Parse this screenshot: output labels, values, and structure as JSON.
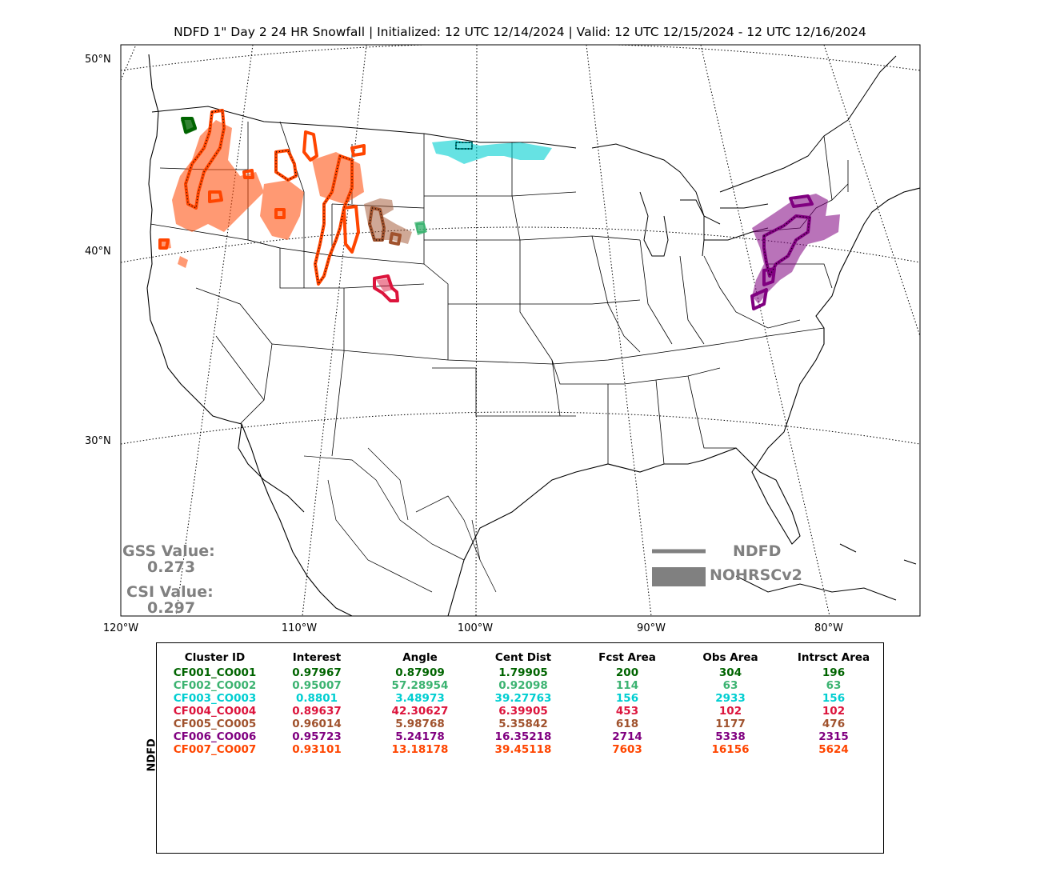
{
  "title": "NDFD 1\" Day 2 24 HR Snowfall | Initialized: 12 UTC 12/14/2024 | Valid: 12 UTC 12/15/2024 - 12 UTC 12/16/2024",
  "lat_labels": [
    "50°N",
    "40°N",
    "30°N"
  ],
  "lon_labels": [
    "120°W",
    "110°W",
    "100°W",
    "90°W",
    "80°W"
  ],
  "gss": {
    "label": "GSS Value:",
    "value": "0.273"
  },
  "csi": {
    "label": "CSI Value:",
    "value": "0.297"
  },
  "legend": {
    "line_label": "NDFD",
    "fill_label": "NOHRSCv2",
    "color": "#808080"
  },
  "table": {
    "ylabel": "NDFD",
    "headers": [
      "Cluster ID",
      "Interest",
      "Angle",
      "Cent Dist",
      "Fcst Area",
      "Obs Area",
      "Intrsct Area"
    ],
    "rows": [
      {
        "color": "#006400",
        "cells": [
          "CF001_CO001",
          "0.97967",
          "0.87909",
          "1.79905",
          "200",
          "304",
          "196"
        ]
      },
      {
        "color": "#3cb371",
        "cells": [
          "CF002_CO002",
          "0.95007",
          "57.28954",
          "0.92098",
          "114",
          "63",
          "63"
        ]
      },
      {
        "color": "#00ced1",
        "cells": [
          "CF003_CO003",
          "0.8801",
          "3.48973",
          "39.27763",
          "156",
          "2933",
          "156"
        ]
      },
      {
        "color": "#dc143c",
        "cells": [
          "CF004_CO004",
          "0.89637",
          "42.30627",
          "6.39905",
          "453",
          "102",
          "102"
        ]
      },
      {
        "color": "#a0522d",
        "cells": [
          "CF005_CO005",
          "0.96014",
          "5.98768",
          "5.35842",
          "618",
          "1177",
          "476"
        ]
      },
      {
        "color": "#800080",
        "cells": [
          "CF006_CO006",
          "0.95723",
          "5.24178",
          "16.35218",
          "2714",
          "5338",
          "2315"
        ]
      },
      {
        "color": "#ff4500",
        "cells": [
          "CF007_CO007",
          "0.93101",
          "13.18178",
          "39.45118",
          "7603",
          "16156",
          "5624"
        ]
      }
    ]
  },
  "clusters": [
    {
      "id": "CF001_CO001",
      "color": "#006400"
    },
    {
      "id": "CF002_CO002",
      "color": "#3cb371"
    },
    {
      "id": "CF003_CO003",
      "color": "#00ced1"
    },
    {
      "id": "CF004_CO004",
      "color": "#dc143c"
    },
    {
      "id": "CF005_CO005",
      "color": "#a0522d"
    },
    {
      "id": "CF006_CO006",
      "color": "#800080"
    },
    {
      "id": "CF007_CO007",
      "color": "#ff4500"
    }
  ]
}
